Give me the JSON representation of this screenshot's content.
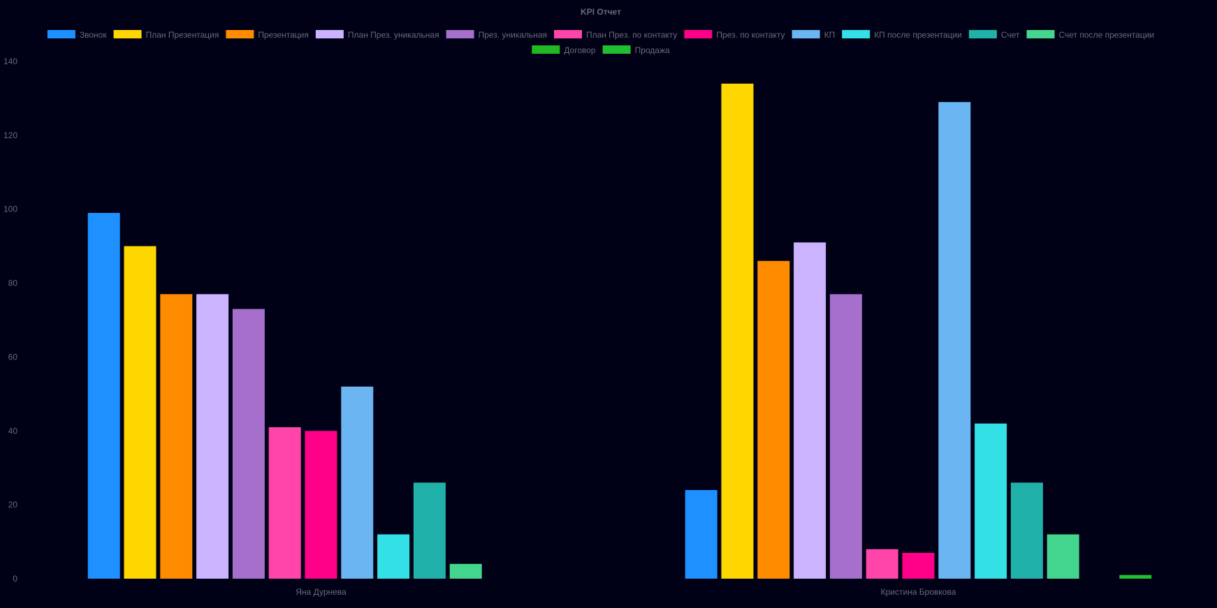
{
  "chart_data": {
    "type": "bar",
    "title": "KPI Отчет",
    "categories": [
      "Яна Дурнева",
      "Кристина Бровкова"
    ],
    "ylim": [
      0,
      140
    ],
    "yticks": [
      0,
      20,
      40,
      60,
      80,
      100,
      120,
      140
    ],
    "grid": false,
    "legend_position": "top",
    "series": [
      {
        "name": "Звонок",
        "color": "#1e90ff",
        "values": [
          99,
          24
        ]
      },
      {
        "name": "План  Презентация",
        "color": "#ffd700",
        "values": [
          90,
          134
        ]
      },
      {
        "name": "Презентация",
        "color": "#ff8c00",
        "values": [
          77,
          86
        ]
      },
      {
        "name": "План  През. уникальная",
        "color": "#ccb3ff",
        "values": [
          77,
          91
        ]
      },
      {
        "name": "През. уникальная",
        "color": "#a56fcb",
        "values": [
          73,
          77
        ]
      },
      {
        "name": "План  През. по контакту",
        "color": "#ff44aa",
        "values": [
          41,
          8
        ]
      },
      {
        "name": "През. по контакту",
        "color": "#ff0088",
        "values": [
          40,
          7
        ]
      },
      {
        "name": "КП",
        "color": "#6bb5f2",
        "values": [
          52,
          129
        ]
      },
      {
        "name": "КП после презентации",
        "color": "#33e0e6",
        "values": [
          12,
          42
        ]
      },
      {
        "name": "Счет",
        "color": "#20b2aa",
        "values": [
          26,
          26
        ]
      },
      {
        "name": "Счет после презентации",
        "color": "#44d68e",
        "values": [
          4,
          12
        ]
      },
      {
        "name": "Договор",
        "color": "#22b822",
        "values": [
          0,
          0
        ]
      },
      {
        "name": "Продажа",
        "color": "#1fbf2f",
        "values": [
          0,
          1
        ]
      }
    ]
  }
}
